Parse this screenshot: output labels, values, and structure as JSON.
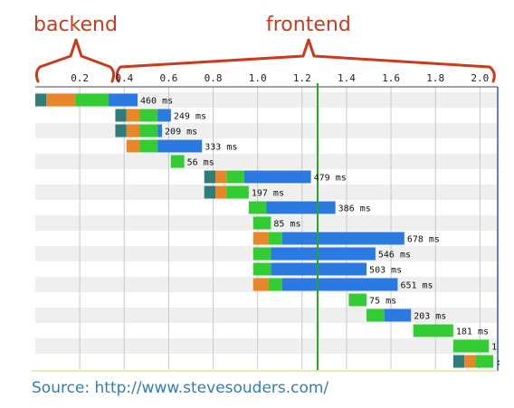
{
  "annotations": {
    "left": "backend",
    "right": "frontend"
  },
  "source": "Source: http://www.stevesouders.com/",
  "colors": {
    "dns": "#2e7d7a",
    "connect": "#e8872a",
    "ttfb": "#33cc33",
    "download": "#2a7ae2",
    "bracket": "#cc3a1e",
    "marker": "#22aa22",
    "row_stripe": "#efefef"
  },
  "chart_data": {
    "type": "bar",
    "subtype": "waterfall",
    "xlim": [
      0,
      2.08
    ],
    "xticks": [
      "0.2",
      "0.4",
      "0.6",
      "0.8",
      "1.0",
      "1.2",
      "1.4",
      "1.6",
      "1.8",
      "2.0"
    ],
    "tick_values": [
      0.2,
      0.4,
      0.6,
      0.8,
      1.0,
      1.2,
      1.4,
      1.6,
      1.8,
      2.0
    ],
    "marker_x": 1.27,
    "backend_range": [
      0,
      0.37
    ],
    "frontend_range": [
      0.37,
      2.08
    ],
    "labels": [
      "460 ms",
      "249 ms",
      "209 ms",
      "333 ms",
      "56 ms",
      "479 ms",
      "197 ms",
      "386 ms",
      "85 ms",
      "678 ms",
      "546 ms",
      "503 ms",
      "651 ms",
      "75 ms",
      "203 ms",
      "181 ms",
      "1",
      ":"
    ],
    "rows": [
      {
        "segments": [
          {
            "phase": "dns",
            "start": 0.0,
            "end": 0.05
          },
          {
            "phase": "connect",
            "start": 0.05,
            "end": 0.18
          },
          {
            "phase": "ttfb",
            "start": 0.18,
            "end": 0.33
          },
          {
            "phase": "download",
            "start": 0.33,
            "end": 0.46
          }
        ]
      },
      {
        "segments": [
          {
            "phase": "dns",
            "start": 0.36,
            "end": 0.41
          },
          {
            "phase": "connect",
            "start": 0.41,
            "end": 0.47
          },
          {
            "phase": "ttfb",
            "start": 0.47,
            "end": 0.55
          },
          {
            "phase": "download",
            "start": 0.55,
            "end": 0.61
          }
        ]
      },
      {
        "segments": [
          {
            "phase": "dns",
            "start": 0.36,
            "end": 0.41
          },
          {
            "phase": "connect",
            "start": 0.41,
            "end": 0.47
          },
          {
            "phase": "ttfb",
            "start": 0.47,
            "end": 0.55
          },
          {
            "phase": "download",
            "start": 0.55,
            "end": 0.57
          }
        ]
      },
      {
        "segments": [
          {
            "phase": "connect",
            "start": 0.41,
            "end": 0.47
          },
          {
            "phase": "ttfb",
            "start": 0.47,
            "end": 0.55
          },
          {
            "phase": "download",
            "start": 0.55,
            "end": 0.75
          }
        ]
      },
      {
        "segments": [
          {
            "phase": "ttfb",
            "start": 0.61,
            "end": 0.67
          }
        ]
      },
      {
        "segments": [
          {
            "phase": "dns",
            "start": 0.76,
            "end": 0.81
          },
          {
            "phase": "connect",
            "start": 0.81,
            "end": 0.86
          },
          {
            "phase": "ttfb",
            "start": 0.86,
            "end": 0.94
          },
          {
            "phase": "download",
            "start": 0.94,
            "end": 1.24
          }
        ]
      },
      {
        "segments": [
          {
            "phase": "dns",
            "start": 0.76,
            "end": 0.81
          },
          {
            "phase": "connect",
            "start": 0.81,
            "end": 0.86
          },
          {
            "phase": "ttfb",
            "start": 0.86,
            "end": 0.96
          }
        ]
      },
      {
        "segments": [
          {
            "phase": "ttfb",
            "start": 0.96,
            "end": 1.04
          },
          {
            "phase": "download",
            "start": 1.04,
            "end": 1.35
          }
        ]
      },
      {
        "segments": [
          {
            "phase": "ttfb",
            "start": 0.98,
            "end": 1.06
          }
        ]
      },
      {
        "segments": [
          {
            "phase": "connect",
            "start": 0.98,
            "end": 1.05
          },
          {
            "phase": "ttfb",
            "start": 1.05,
            "end": 1.11
          },
          {
            "phase": "download",
            "start": 1.11,
            "end": 1.66
          }
        ]
      },
      {
        "segments": [
          {
            "phase": "ttfb",
            "start": 0.98,
            "end": 1.06
          },
          {
            "phase": "download",
            "start": 1.06,
            "end": 1.53
          }
        ]
      },
      {
        "segments": [
          {
            "phase": "ttfb",
            "start": 0.98,
            "end": 1.06
          },
          {
            "phase": "download",
            "start": 1.06,
            "end": 1.49
          }
        ]
      },
      {
        "segments": [
          {
            "phase": "connect",
            "start": 0.98,
            "end": 1.05
          },
          {
            "phase": "ttfb",
            "start": 1.05,
            "end": 1.11
          },
          {
            "phase": "download",
            "start": 1.11,
            "end": 1.63
          }
        ]
      },
      {
        "segments": [
          {
            "phase": "ttfb",
            "start": 1.41,
            "end": 1.49
          }
        ]
      },
      {
        "segments": [
          {
            "phase": "ttfb",
            "start": 1.49,
            "end": 1.57
          },
          {
            "phase": "download",
            "start": 1.57,
            "end": 1.69
          }
        ]
      },
      {
        "segments": [
          {
            "phase": "ttfb",
            "start": 1.7,
            "end": 1.88
          }
        ]
      },
      {
        "segments": [
          {
            "phase": "ttfb",
            "start": 1.88,
            "end": 2.04
          }
        ]
      },
      {
        "segments": [
          {
            "phase": "dns",
            "start": 1.88,
            "end": 1.93
          },
          {
            "phase": "connect",
            "start": 1.93,
            "end": 1.98
          },
          {
            "phase": "ttfb",
            "start": 1.98,
            "end": 2.06
          }
        ]
      }
    ]
  }
}
